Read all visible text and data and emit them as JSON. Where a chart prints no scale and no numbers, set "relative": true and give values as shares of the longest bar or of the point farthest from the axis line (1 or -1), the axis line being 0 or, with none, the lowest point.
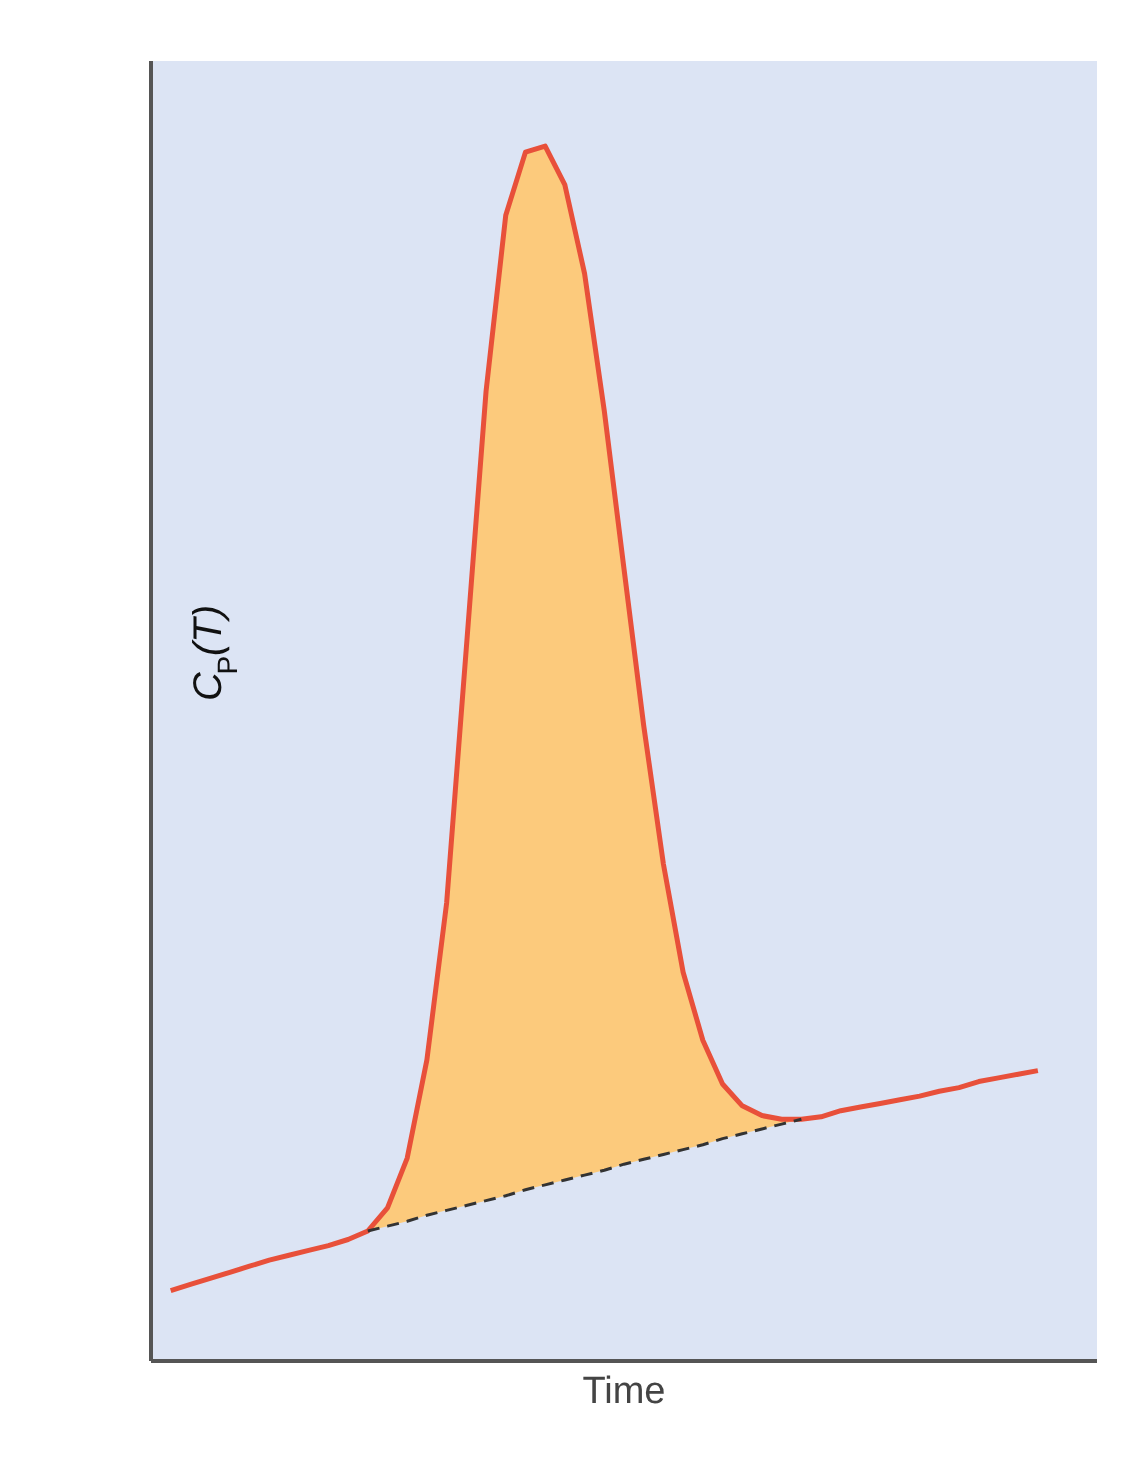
{
  "chart_data": {
    "type": "line",
    "relative": true,
    "xlabel": "Time",
    "ylabel": "C$_{P}$(T)",
    "categories": [
      null,
      null,
      null,
      null,
      null,
      null,
      null,
      null,
      null,
      null,
      null,
      null,
      null,
      null,
      null,
      null,
      null,
      null,
      null,
      null,
      null,
      null,
      null,
      null,
      null,
      null,
      null,
      null,
      null,
      null,
      null,
      null,
      null,
      null,
      null,
      null,
      null,
      null,
      null,
      null,
      null,
      null,
      null,
      null,
      null
    ],
    "series": [
      {
        "color": "#e8503a",
        "values": [
          0.058,
          0.063,
          0.068,
          0.073,
          0.078,
          0.083,
          0.087,
          0.091,
          0.095,
          0.1,
          0.107,
          0.126,
          0.167,
          0.248,
          0.377,
          0.587,
          0.798,
          0.943,
          0.995,
          1.0,
          0.968,
          0.895,
          0.782,
          0.652,
          0.523,
          0.409,
          0.32,
          0.264,
          0.228,
          0.21,
          0.202,
          0.199,
          0.199,
          0.201,
          0.206,
          0.209,
          0.212,
          0.215,
          0.218,
          0.222,
          0.225,
          0.23,
          0.233,
          0.236,
          0.239
        ],
        "lower": [
          null,
          null,
          null,
          null,
          null,
          null,
          null,
          null,
          null,
          null,
          0.107,
          0.111,
          0.115,
          0.12,
          0.124,
          0.128,
          0.132,
          0.136,
          0.141,
          0.145,
          0.149,
          0.153,
          0.157,
          0.162,
          0.166,
          0.17,
          0.174,
          0.178,
          0.183,
          0.187,
          0.191,
          0.195,
          0.199,
          null,
          null,
          null,
          null,
          null,
          null,
          null,
          null,
          null,
          null,
          null,
          null
        ],
        "upper": [
          null,
          null,
          null,
          null,
          null,
          null,
          null,
          null,
          null,
          null,
          0.107,
          0.126,
          0.167,
          0.248,
          0.377,
          0.587,
          0.798,
          0.943,
          0.995,
          1.0,
          0.968,
          0.895,
          0.782,
          0.652,
          0.523,
          0.409,
          0.32,
          0.264,
          0.228,
          0.21,
          0.202,
          0.199,
          0.199,
          null,
          null,
          null,
          null,
          null,
          null,
          null,
          null,
          null,
          null,
          null,
          null
        ]
      },
      {
        "type": "line",
        "line_style": "dashed",
        "color": "#333333",
        "values": [
          null,
          null,
          null,
          null,
          null,
          null,
          null,
          null,
          null,
          null,
          0.107,
          0.111,
          0.115,
          0.12,
          0.124,
          0.128,
          0.132,
          0.136,
          0.141,
          0.145,
          0.149,
          0.153,
          0.157,
          0.162,
          0.166,
          0.17,
          0.174,
          0.178,
          0.183,
          0.187,
          0.191,
          0.195,
          0.199,
          null,
          null,
          null,
          null,
          null,
          null,
          null,
          null,
          null,
          null,
          null,
          null
        ]
      }
    ]
  }
}
